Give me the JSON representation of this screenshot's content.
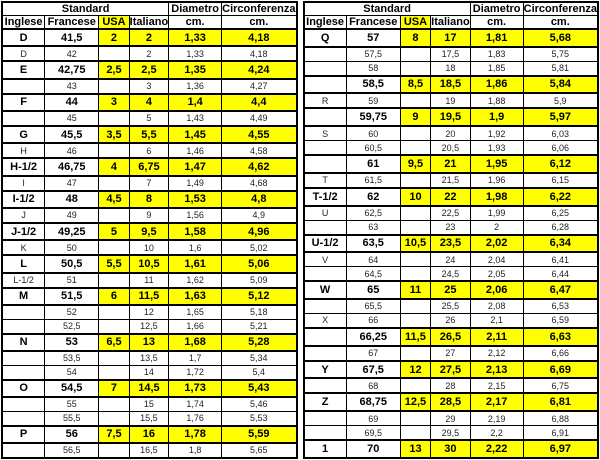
{
  "colors": {
    "highlight": "#ffff00",
    "border": "#000000",
    "text": "#000000"
  },
  "tables": [
    {
      "header": {
        "group_standard": "Standard",
        "group_diametro": "Diametro",
        "group_circonferenza": "Circonferenza",
        "col_inglese": "Inglese",
        "col_francese": "Francese",
        "col_usa": "USA",
        "col_italiano": "Italiano",
        "col_diametro_unit": "cm.",
        "col_circonferenza_unit": "cm."
      },
      "rows": [
        {
          "inglese": "D",
          "francese": "41,5",
          "usa": "2",
          "italiano": "2",
          "diametro": "1,33",
          "circonferenza": "4,18",
          "highlight": true
        },
        {
          "inglese": "D",
          "francese": "42",
          "usa": "",
          "italiano": "2",
          "diametro": "1,33",
          "circonferenza": "4,18",
          "highlight": false
        },
        {
          "inglese": "E",
          "francese": "42,75",
          "usa": "2,5",
          "italiano": "2,5",
          "diametro": "1,35",
          "circonferenza": "4,24",
          "highlight": true
        },
        {
          "inglese": "",
          "francese": "43",
          "usa": "",
          "italiano": "3",
          "diametro": "1,36",
          "circonferenza": "4,27",
          "highlight": false
        },
        {
          "inglese": "F",
          "francese": "44",
          "usa": "3",
          "italiano": "4",
          "diametro": "1,4",
          "circonferenza": "4,4",
          "highlight": true
        },
        {
          "inglese": "",
          "francese": "45",
          "usa": "",
          "italiano": "5",
          "diametro": "1,43",
          "circonferenza": "4,49",
          "highlight": false
        },
        {
          "inglese": "G",
          "francese": "45,5",
          "usa": "3,5",
          "italiano": "5,5",
          "diametro": "1,45",
          "circonferenza": "4,55",
          "highlight": true
        },
        {
          "inglese": "H",
          "francese": "46",
          "usa": "",
          "italiano": "6",
          "diametro": "1,46",
          "circonferenza": "4,58",
          "highlight": false
        },
        {
          "inglese": "H-1/2",
          "francese": "46,75",
          "usa": "4",
          "italiano": "6,75",
          "diametro": "1,47",
          "circonferenza": "4,62",
          "highlight": true
        },
        {
          "inglese": "I",
          "francese": "47",
          "usa": "",
          "italiano": "7",
          "diametro": "1,49",
          "circonferenza": "4,68",
          "highlight": false
        },
        {
          "inglese": "I-1/2",
          "francese": "48",
          "usa": "4,5",
          "italiano": "8",
          "diametro": "1,53",
          "circonferenza": "4,8",
          "highlight": true
        },
        {
          "inglese": "J",
          "francese": "49",
          "usa": "",
          "italiano": "9",
          "diametro": "1,56",
          "circonferenza": "4,9",
          "highlight": false
        },
        {
          "inglese": "J-1/2",
          "francese": "49,25",
          "usa": "5",
          "italiano": "9,5",
          "diametro": "1,58",
          "circonferenza": "4,96",
          "highlight": true
        },
        {
          "inglese": "K",
          "francese": "50",
          "usa": "",
          "italiano": "10",
          "diametro": "1,6",
          "circonferenza": "5,02",
          "highlight": false
        },
        {
          "inglese": "L",
          "francese": "50,5",
          "usa": "5,5",
          "italiano": "10,5",
          "diametro": "1,61",
          "circonferenza": "5,06",
          "highlight": true
        },
        {
          "inglese": "L-1/2",
          "francese": "51",
          "usa": "",
          "italiano": "11",
          "diametro": "1,62",
          "circonferenza": "5,09",
          "highlight": false
        },
        {
          "inglese": "M",
          "francese": "51,5",
          "usa": "6",
          "italiano": "11,5",
          "diametro": "1,63",
          "circonferenza": "5,12",
          "highlight": true
        },
        {
          "inglese": "",
          "francese": "52",
          "usa": "",
          "italiano": "12",
          "diametro": "1,65",
          "circonferenza": "5,18",
          "highlight": false
        },
        {
          "inglese": "",
          "francese": "52,5",
          "usa": "",
          "italiano": "12,5",
          "diametro": "1,66",
          "circonferenza": "5,21",
          "highlight": false
        },
        {
          "inglese": "N",
          "francese": "53",
          "usa": "6,5",
          "italiano": "13",
          "diametro": "1,68",
          "circonferenza": "5,28",
          "highlight": true
        },
        {
          "inglese": "",
          "francese": "53,5",
          "usa": "",
          "italiano": "13,5",
          "diametro": "1,7",
          "circonferenza": "5,34",
          "highlight": false
        },
        {
          "inglese": "",
          "francese": "54",
          "usa": "",
          "italiano": "14",
          "diametro": "1,72",
          "circonferenza": "5,4",
          "highlight": false
        },
        {
          "inglese": "O",
          "francese": "54,5",
          "usa": "7",
          "italiano": "14,5",
          "diametro": "1,73",
          "circonferenza": "5,43",
          "highlight": true
        },
        {
          "inglese": "",
          "francese": "55",
          "usa": "",
          "italiano": "15",
          "diametro": "1,74",
          "circonferenza": "5,46",
          "highlight": false
        },
        {
          "inglese": "",
          "francese": "55,5",
          "usa": "",
          "italiano": "15,5",
          "diametro": "1,76",
          "circonferenza": "5,53",
          "highlight": false
        },
        {
          "inglese": "P",
          "francese": "56",
          "usa": "7,5",
          "italiano": "16",
          "diametro": "1,78",
          "circonferenza": "5,59",
          "highlight": true
        },
        {
          "inglese": "",
          "francese": "56,5",
          "usa": "",
          "italiano": "16,5",
          "diametro": "1,8",
          "circonferenza": "5,65",
          "highlight": false
        }
      ]
    },
    {
      "header": {
        "group_standard": "Standard",
        "group_diametro": "Diametro",
        "group_circonferenza": "Circonferenza",
        "col_inglese": "Inglese",
        "col_francese": "Francese",
        "col_usa": "USA",
        "col_italiano": "Italiano",
        "col_diametro_unit": "cm.",
        "col_circonferenza_unit": "cm."
      },
      "rows": [
        {
          "inglese": "Q",
          "francese": "57",
          "usa": "8",
          "italiano": "17",
          "diametro": "1,81",
          "circonferenza": "5,68",
          "highlight": true
        },
        {
          "inglese": "",
          "francese": "57,5",
          "usa": "",
          "italiano": "17,5",
          "diametro": "1,83",
          "circonferenza": "5,75",
          "highlight": false
        },
        {
          "inglese": "",
          "francese": "58",
          "usa": "",
          "italiano": "18",
          "diametro": "1,85",
          "circonferenza": "5,81",
          "highlight": false
        },
        {
          "inglese": "",
          "francese": "58,5",
          "usa": "8,5",
          "italiano": "18,5",
          "diametro": "1,86",
          "circonferenza": "5,84",
          "highlight": true
        },
        {
          "inglese": "R",
          "francese": "59",
          "usa": "",
          "italiano": "19",
          "diametro": "1,88",
          "circonferenza": "5,9",
          "highlight": false
        },
        {
          "inglese": "",
          "francese": "59,75",
          "usa": "9",
          "italiano": "19,5",
          "diametro": "1,9",
          "circonferenza": "5,97",
          "highlight": true
        },
        {
          "inglese": "S",
          "francese": "60",
          "usa": "",
          "italiano": "20",
          "diametro": "1,92",
          "circonferenza": "6,03",
          "highlight": false
        },
        {
          "inglese": "",
          "francese": "60,5",
          "usa": "",
          "italiano": "20,5",
          "diametro": "1,93",
          "circonferenza": "6,06",
          "highlight": false
        },
        {
          "inglese": "",
          "francese": "61",
          "usa": "9,5",
          "italiano": "21",
          "diametro": "1,95",
          "circonferenza": "6,12",
          "highlight": true
        },
        {
          "inglese": "T",
          "francese": "61,5",
          "usa": "",
          "italiano": "21,5",
          "diametro": "1,96",
          "circonferenza": "6,15",
          "highlight": false
        },
        {
          "inglese": "T-1/2",
          "francese": "62",
          "usa": "10",
          "italiano": "22",
          "diametro": "1,98",
          "circonferenza": "6,22",
          "highlight": true
        },
        {
          "inglese": "U",
          "francese": "62,5",
          "usa": "",
          "italiano": "22,5",
          "diametro": "1,99",
          "circonferenza": "6,25",
          "highlight": false
        },
        {
          "inglese": "",
          "francese": "63",
          "usa": "",
          "italiano": "23",
          "diametro": "2",
          "circonferenza": "6,28",
          "highlight": false
        },
        {
          "inglese": "U-1/2",
          "francese": "63,5",
          "usa": "10,5",
          "italiano": "23,5",
          "diametro": "2,02",
          "circonferenza": "6,34",
          "highlight": true
        },
        {
          "inglese": "V",
          "francese": "64",
          "usa": "",
          "italiano": "24",
          "diametro": "2,04",
          "circonferenza": "6,41",
          "highlight": false
        },
        {
          "inglese": "",
          "francese": "64,5",
          "usa": "",
          "italiano": "24,5",
          "diametro": "2,05",
          "circonferenza": "6,44",
          "highlight": false
        },
        {
          "inglese": "W",
          "francese": "65",
          "usa": "11",
          "italiano": "25",
          "diametro": "2,06",
          "circonferenza": "6,47",
          "highlight": true
        },
        {
          "inglese": "",
          "francese": "65,5",
          "usa": "",
          "italiano": "25,5",
          "diametro": "2,08",
          "circonferenza": "6,53",
          "highlight": false
        },
        {
          "inglese": "X",
          "francese": "66",
          "usa": "",
          "italiano": "26",
          "diametro": "2,1",
          "circonferenza": "6,59",
          "highlight": false
        },
        {
          "inglese": "",
          "francese": "66,25",
          "usa": "11,5",
          "italiano": "26,5",
          "diametro": "2,11",
          "circonferenza": "6,63",
          "highlight": true
        },
        {
          "inglese": "",
          "francese": "67",
          "usa": "",
          "italiano": "27",
          "diametro": "2,12",
          "circonferenza": "6,66",
          "highlight": false
        },
        {
          "inglese": "Y",
          "francese": "67,5",
          "usa": "12",
          "italiano": "27,5",
          "diametro": "2,13",
          "circonferenza": "6,69",
          "highlight": true
        },
        {
          "inglese": "",
          "francese": "68",
          "usa": "",
          "italiano": "28",
          "diametro": "2,15",
          "circonferenza": "6,75",
          "highlight": false
        },
        {
          "inglese": "Z",
          "francese": "68,75",
          "usa": "12,5",
          "italiano": "28,5",
          "diametro": "2,17",
          "circonferenza": "6,81",
          "highlight": true
        },
        {
          "inglese": "",
          "francese": "69",
          "usa": "",
          "italiano": "29",
          "diametro": "2,19",
          "circonferenza": "6,88",
          "highlight": false
        },
        {
          "inglese": "",
          "francese": "69,5",
          "usa": "",
          "italiano": "29,5",
          "diametro": "2,2",
          "circonferenza": "6,91",
          "highlight": false
        },
        {
          "inglese": "1",
          "francese": "70",
          "usa": "13",
          "italiano": "30",
          "diametro": "2,22",
          "circonferenza": "6,97",
          "highlight": true
        }
      ]
    }
  ]
}
